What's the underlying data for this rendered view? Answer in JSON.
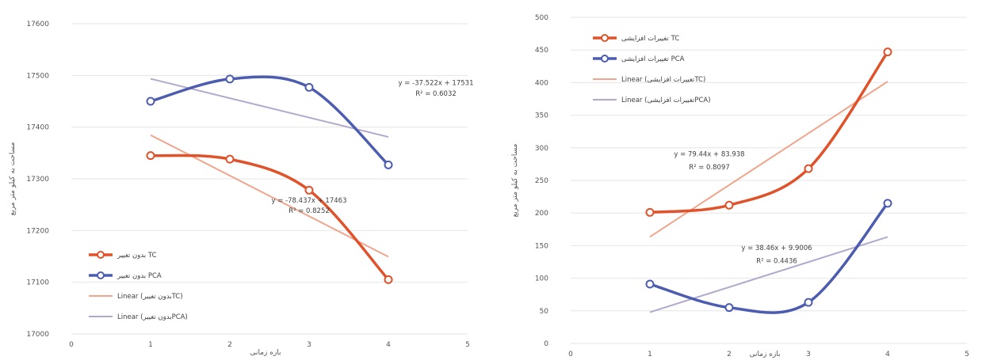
{
  "colors": {
    "red": "#e0522a",
    "blue": "#4c5cb0",
    "red_trend": "#f0a58c",
    "blue_trend": "#b3a8cc",
    "grid": "#e6e6e6"
  },
  "chart_data": [
    {
      "type": "line",
      "ylabel": "مساحت به کیلو متر مربع",
      "xlabel": "بازه زمانی",
      "xlim": [
        0,
        5
      ],
      "ylim": [
        17000,
        17600
      ],
      "x_ticks": [
        "0",
        "1",
        "2",
        "3",
        "4",
        "5"
      ],
      "y_ticks": [
        "17000",
        "17100",
        "17200",
        "17300",
        "17400",
        "17500",
        "17600"
      ],
      "grid": "horizontal",
      "legend_position": "bottom-left",
      "series": [
        {
          "name": "بدون تغییر TC",
          "style": "smooth-line-markers",
          "color": "red",
          "x": [
            1,
            2,
            3,
            4
          ],
          "y": [
            17345,
            17338,
            17278,
            17105
          ]
        },
        {
          "name": "بدون تغییر PCA",
          "style": "smooth-line-markers",
          "color": "blue",
          "x": [
            1,
            2,
            3,
            4
          ],
          "y": [
            17450,
            17493,
            17477,
            17327
          ]
        },
        {
          "name": "Linear (بدون تغییرTC)",
          "style": "trendline",
          "color": "red_trend",
          "x": [
            1,
            4
          ],
          "y": [
            17384.6,
            17149.3
          ]
        },
        {
          "name": "Linear (بدون تغییرPCA)",
          "style": "trendline",
          "color": "blue_trend",
          "x": [
            1,
            4
          ],
          "y": [
            17493.5,
            17381
          ]
        }
      ],
      "annotations": [
        {
          "text": "y = -78.437x + 17463",
          "x": 3.0,
          "y": 17254
        },
        {
          "text": "R² = 0.8252",
          "x": 3.0,
          "y": 17234
        },
        {
          "text": "y = -37.522x + 17531",
          "x": 4.6,
          "y": 17481
        },
        {
          "text": "R² = 0.6032",
          "x": 4.6,
          "y": 17461
        }
      ]
    },
    {
      "type": "line",
      "ylabel": "مساحت به کیلو متر مربع",
      "xlabel": "بازه زمانی",
      "xlim": [
        0,
        5
      ],
      "ylim": [
        0,
        500
      ],
      "x_ticks": [
        "0",
        "1",
        "2",
        "3",
        "4",
        "5"
      ],
      "y_ticks": [
        "0",
        "50",
        "100",
        "150",
        "200",
        "250",
        "300",
        "350",
        "400",
        "450",
        "500"
      ],
      "grid": "horizontal",
      "legend_position": "top-left",
      "series": [
        {
          "name": "تغییرات افزایشی TC",
          "style": "smooth-line-markers",
          "color": "red",
          "x": [
            1,
            2,
            3,
            4
          ],
          "y": [
            201,
            212,
            268,
            447
          ]
        },
        {
          "name": "تغییرات افزایشی PCA",
          "style": "smooth-line-markers",
          "color": "blue",
          "x": [
            1,
            2,
            3,
            4
          ],
          "y": [
            91,
            55,
            63,
            215
          ]
        },
        {
          "name": "Linear (تغییرات افزایشیTC)",
          "style": "trendline",
          "color": "red_trend",
          "x": [
            1,
            4
          ],
          "y": [
            163.5,
            401.7
          ]
        },
        {
          "name": "Linear (تغییرات افزایشیPCA)",
          "style": "trendline",
          "color": "blue_trend",
          "x": [
            1,
            4
          ],
          "y": [
            47.9,
            163.3
          ]
        }
      ],
      "annotations": [
        {
          "text": "y = 79.44x + 83.938",
          "x": 1.75,
          "y": 287
        },
        {
          "text": "R² = 0.8097",
          "x": 1.75,
          "y": 267
        },
        {
          "text": "y = 38.46x + 9.9006",
          "x": 2.6,
          "y": 143
        },
        {
          "text": "R² = 0.4436",
          "x": 2.6,
          "y": 123
        }
      ]
    }
  ]
}
